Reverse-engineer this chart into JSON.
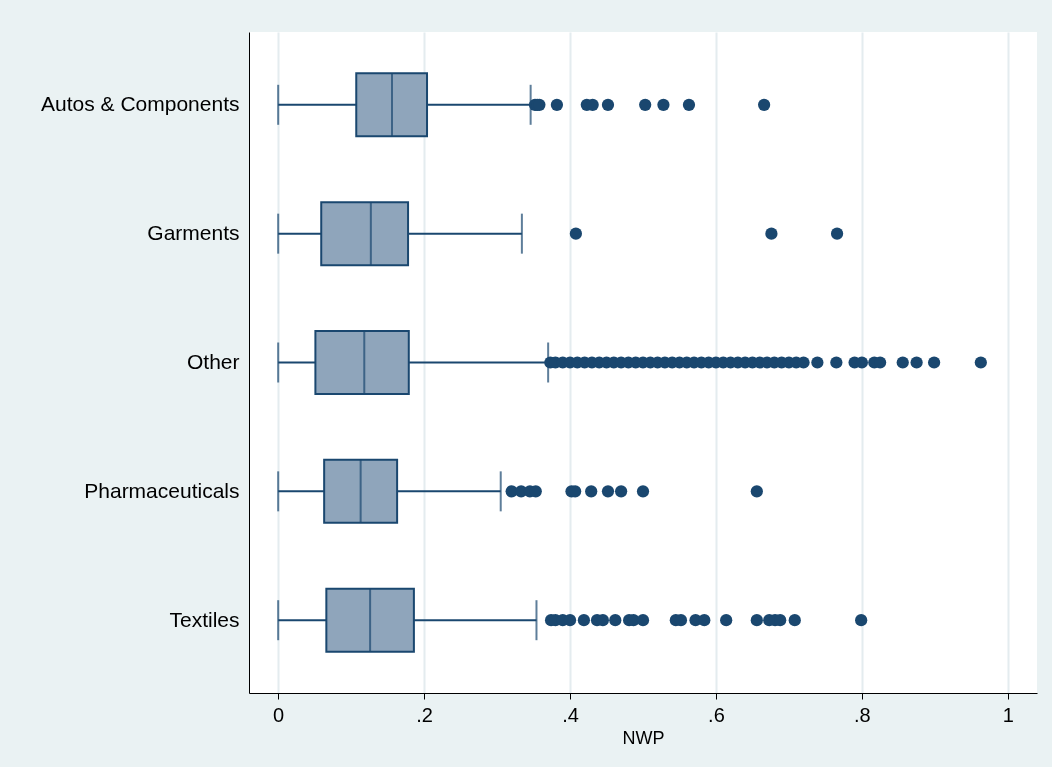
{
  "chart_data": {
    "type": "box",
    "orientation": "horizontal",
    "xlabel": "NWP",
    "categories": [
      "Autos & Components",
      "Garments",
      "Other",
      "Pharmaceuticals",
      "Textiles"
    ],
    "color": "#8fa5bb",
    "grid": "x",
    "xlim": [
      -0.04,
      1.04
    ],
    "xticks": [
      0,
      {
        "value": 0.2,
        "label": ".2"
      },
      {
        "value": 0.4,
        "label": ".4"
      },
      {
        "value": 0.6,
        "label": ".6"
      },
      {
        "value": 0.8,
        "label": ".8"
      },
      1
    ],
    "boxes": [
      {
        "low": 0,
        "q1": 0.107,
        "median": 0.156,
        "q3": 0.204,
        "high": 0.346,
        "outliers": [
          0.352,
          0.355,
          0.358,
          0.382,
          0.423,
          0.431,
          0.452,
          0.503,
          0.528,
          0.563,
          0.666
        ]
      },
      {
        "low": 0,
        "q1": 0.059,
        "median": 0.127,
        "q3": 0.178,
        "high": 0.334,
        "outliers": [
          0.408,
          0.676,
          0.766
        ]
      },
      {
        "low": 0,
        "q1": 0.051,
        "median": 0.118,
        "q3": 0.179,
        "high": 0.37,
        "outliers": [
          0.373,
          0.38,
          0.39,
          0.4,
          0.41,
          0.42,
          0.43,
          0.44,
          0.45,
          0.46,
          0.47,
          0.48,
          0.49,
          0.5,
          0.51,
          0.52,
          0.53,
          0.54,
          0.55,
          0.56,
          0.57,
          0.58,
          0.59,
          0.6,
          0.61,
          0.62,
          0.63,
          0.64,
          0.65,
          0.66,
          0.67,
          0.68,
          0.69,
          0.7,
          0.71,
          0.72,
          0.739,
          0.765,
          0.79,
          0.8,
          0.817,
          0.825,
          0.856,
          0.875,
          0.899,
          0.963
        ]
      },
      {
        "low": 0,
        "q1": 0.063,
        "median": 0.113,
        "q3": 0.163,
        "high": 0.305,
        "outliers": [
          0.32,
          0.333,
          0.345,
          0.353,
          0.402,
          0.407,
          0.429,
          0.452,
          0.47,
          0.5,
          0.656
        ]
      },
      {
        "low": 0,
        "q1": 0.066,
        "median": 0.126,
        "q3": 0.186,
        "high": 0.354,
        "outliers": [
          0.374,
          0.38,
          0.39,
          0.4,
          0.419,
          0.437,
          0.445,
          0.462,
          0.481,
          0.487,
          0.5,
          0.545,
          0.552,
          0.572,
          0.584,
          0.614,
          0.656,
          0.673,
          0.681,
          0.688,
          0.708,
          0.799
        ]
      }
    ]
  }
}
